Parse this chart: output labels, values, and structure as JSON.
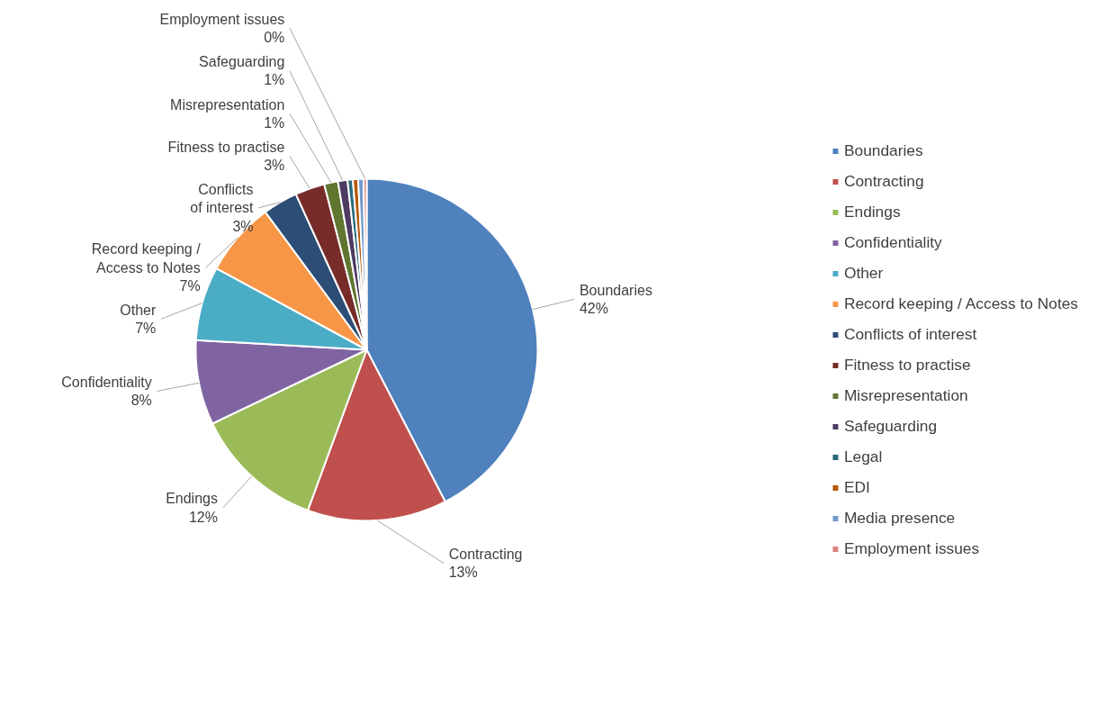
{
  "chart_data": {
    "type": "pie",
    "categories": [
      "Boundaries",
      "Contracting",
      "Endings",
      "Confidentiality",
      "Other",
      "Record keeping / Access to Notes",
      "Conflicts of interest",
      "Fitness to practise",
      "Misrepresentation",
      "Safeguarding",
      "Legal",
      "EDI",
      "Media presence",
      "Employment issues"
    ],
    "values": [
      42.4,
      13.2,
      12.3,
      8.0,
      7.0,
      7.0,
      3.3,
      2.8,
      1.3,
      0.9,
      0.5,
      0.5,
      0.5,
      0.3
    ],
    "colors": [
      "#4f81bd",
      "#c0504d",
      "#9bbb59",
      "#8064a2",
      "#4bacc6",
      "#f79646",
      "#2c4d75",
      "#772c2a",
      "#5f7530",
      "#4d3b62",
      "#276a7c",
      "#b65708",
      "#729aca",
      "#d9827e"
    ],
    "value_labels": [
      "42%",
      "13%",
      "12%",
      "8%",
      "7%",
      "7%",
      "3%",
      "3%",
      "1%",
      "1%",
      null,
      null,
      null,
      "0%"
    ],
    "legend": "right"
  }
}
